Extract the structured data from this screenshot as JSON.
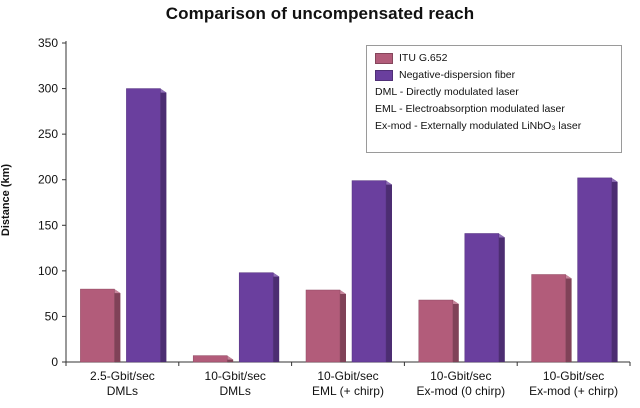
{
  "chart_data": {
    "type": "bar",
    "title": "Comparison of uncompensated reach",
    "ylabel": "Distance (km)",
    "xlabel": "",
    "ylim": [
      0,
      350
    ],
    "yticks": [
      0,
      50,
      100,
      150,
      200,
      250,
      300,
      350
    ],
    "grid": false,
    "legend_position": "top-right",
    "categories": [
      [
        "2.5-Gbit/sec",
        "DMLs"
      ],
      [
        "10-Gbit/sec",
        "DMLs"
      ],
      [
        "10-Gbit/sec",
        "EML (+ chirp)"
      ],
      [
        "10-Gbit/sec",
        "Ex-mod (0 chirp)"
      ],
      [
        "10-Gbit/sec",
        "Ex-mod (+ chirp)"
      ]
    ],
    "series": [
      {
        "name": "ITU G.652",
        "color": "#b25c7a",
        "values": [
          80,
          7,
          79,
          68,
          96
        ]
      },
      {
        "name": "Negative-dispersion fiber",
        "color": "#6a3f9e",
        "values": [
          300,
          98,
          199,
          141,
          202
        ]
      }
    ],
    "legend_notes": [
      "DML - Directly modulated laser",
      "EML - Electroabsorption modulated laser",
      "Ex-mod - Externally modulated LiNbO₃ laser"
    ]
  }
}
